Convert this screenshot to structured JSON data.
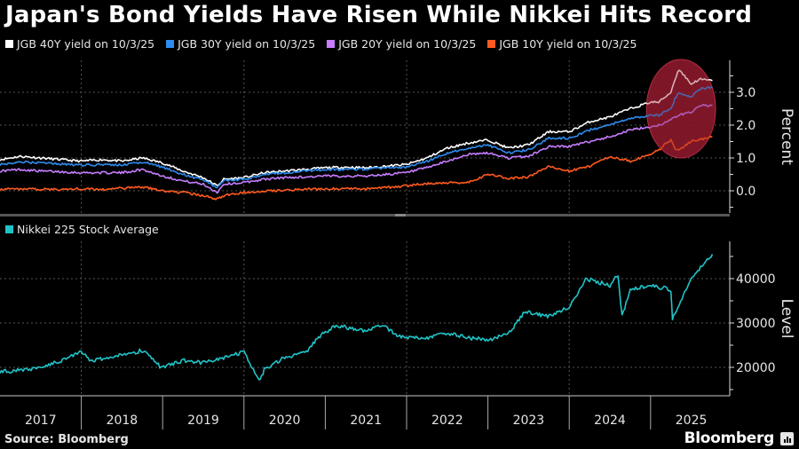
{
  "title": "Japan's Bond Yields Have Risen While Nikkei Hits Record",
  "source": "Source: Bloomberg",
  "brand": "Bloomberg",
  "chart_data": [
    {
      "type": "line",
      "name": "bond-yields",
      "ylabel": "Percent",
      "ylim": [
        -0.7,
        4.0
      ],
      "yticks": [
        0.0,
        1.0,
        2.0,
        3.0
      ],
      "ytick_labels": [
        "0.0",
        "1.0",
        "2.0",
        "3.0"
      ],
      "grid": true,
      "legend_position": "top-left",
      "annotation": {
        "type": "ellipse-highlight",
        "x_range": [
          2024.95,
          2025.8
        ],
        "y_range": [
          1.0,
          4.0
        ],
        "color": "#8b1a2b"
      },
      "x": [
        2017.0,
        2017.25,
        2017.5,
        2017.75,
        2018.0,
        2018.25,
        2018.5,
        2018.75,
        2019.0,
        2019.25,
        2019.5,
        2019.67,
        2019.75,
        2020.0,
        2020.25,
        2020.5,
        2020.75,
        2021.0,
        2021.25,
        2021.5,
        2021.75,
        2022.0,
        2022.25,
        2022.5,
        2022.75,
        2023.0,
        2023.25,
        2023.5,
        2023.75,
        2024.0,
        2024.25,
        2024.5,
        2024.75,
        2025.0,
        2025.1,
        2025.25,
        2025.3,
        2025.35,
        2025.5,
        2025.6,
        2025.76
      ],
      "series": [
        {
          "name": "JGB 40Y yield on 10/3/25",
          "color": "#ffffff",
          "values": [
            0.95,
            1.05,
            1.0,
            0.95,
            0.9,
            0.95,
            0.9,
            1.0,
            0.85,
            0.6,
            0.4,
            0.15,
            0.35,
            0.4,
            0.55,
            0.6,
            0.65,
            0.7,
            0.72,
            0.7,
            0.75,
            0.8,
            1.0,
            1.3,
            1.45,
            1.55,
            1.3,
            1.4,
            1.8,
            1.8,
            2.1,
            2.25,
            2.5,
            2.7,
            2.7,
            3.0,
            3.4,
            3.7,
            3.25,
            3.4,
            3.35
          ]
        },
        {
          "name": "JGB 30Y yield on 10/3/25",
          "color": "#2d8cf0",
          "values": [
            0.8,
            0.88,
            0.85,
            0.82,
            0.78,
            0.8,
            0.78,
            0.88,
            0.72,
            0.5,
            0.32,
            0.1,
            0.3,
            0.35,
            0.5,
            0.55,
            0.6,
            0.65,
            0.65,
            0.65,
            0.7,
            0.72,
            0.9,
            1.15,
            1.3,
            1.4,
            1.15,
            1.25,
            1.6,
            1.6,
            1.85,
            2.0,
            2.2,
            2.3,
            2.3,
            2.5,
            2.8,
            3.0,
            2.85,
            3.1,
            3.15
          ]
        },
        {
          "name": "JGB 20Y yield on 10/3/25",
          "color": "#c77dff",
          "values": [
            0.6,
            0.65,
            0.6,
            0.58,
            0.55,
            0.55,
            0.55,
            0.65,
            0.45,
            0.3,
            0.2,
            -0.05,
            0.2,
            0.25,
            0.35,
            0.4,
            0.42,
            0.45,
            0.45,
            0.45,
            0.5,
            0.55,
            0.7,
            0.9,
            1.1,
            1.15,
            1.0,
            1.05,
            1.35,
            1.35,
            1.5,
            1.65,
            1.85,
            1.95,
            2.0,
            2.15,
            2.25,
            2.3,
            2.4,
            2.6,
            2.6
          ]
        },
        {
          "name": "JGB 10Y yield  on 10/3/25",
          "color": "#ff5a1f",
          "values": [
            0.05,
            0.06,
            0.05,
            0.04,
            0.06,
            0.04,
            0.08,
            0.12,
            0.0,
            -0.05,
            -0.15,
            -0.25,
            -0.15,
            -0.05,
            0.0,
            0.02,
            0.05,
            0.05,
            0.08,
            0.05,
            0.1,
            0.15,
            0.22,
            0.24,
            0.25,
            0.5,
            0.38,
            0.42,
            0.75,
            0.6,
            0.75,
            1.05,
            0.9,
            1.1,
            1.25,
            1.55,
            1.3,
            1.25,
            1.5,
            1.55,
            1.65
          ]
        }
      ]
    },
    {
      "type": "line",
      "name": "nikkei",
      "ylabel": "Level",
      "ylim": [
        14000,
        49500
      ],
      "yticks": [
        20000,
        30000,
        40000
      ],
      "ytick_labels": [
        "20000",
        "30000",
        "40000"
      ],
      "grid": true,
      "legend_position": "top-left",
      "x": [
        2017.0,
        2017.25,
        2017.5,
        2017.75,
        2018.0,
        2018.1,
        2018.25,
        2018.5,
        2018.75,
        2018.98,
        2019.25,
        2019.5,
        2019.75,
        2020.0,
        2020.2,
        2020.25,
        2020.5,
        2020.75,
        2020.95,
        2021.15,
        2021.5,
        2021.7,
        2021.9,
        2022.2,
        2022.5,
        2022.75,
        2023.0,
        2023.25,
        2023.45,
        2023.75,
        2024.0,
        2024.2,
        2024.5,
        2024.6,
        2024.65,
        2024.75,
        2025.0,
        2025.25,
        2025.27,
        2025.5,
        2025.76
      ],
      "series": [
        {
          "name": "Nikkei 225 Stock Average",
          "color": "#20c4c8",
          "values": [
            19100,
            19300,
            20000,
            21500,
            23700,
            21500,
            22000,
            22700,
            23800,
            20000,
            21500,
            21000,
            22000,
            23500,
            17000,
            19500,
            22300,
            23200,
            27400,
            29500,
            28000,
            29500,
            27000,
            26500,
            27800,
            26700,
            26200,
            27500,
            32500,
            31500,
            33500,
            40000,
            38500,
            40800,
            31500,
            37500,
            38500,
            37500,
            31000,
            40000,
            45500
          ]
        }
      ]
    }
  ],
  "x_axis": {
    "years": [
      "2017",
      "2018",
      "2019",
      "2020",
      "2021",
      "2022",
      "2023",
      "2024",
      "2025"
    ]
  }
}
